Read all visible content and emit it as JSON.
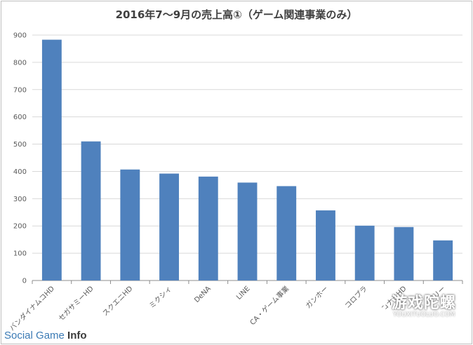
{
  "chart_data": {
    "type": "bar",
    "title": "2016年7〜9月の売上高①（ゲーム関連事業のみ）",
    "categories": [
      "バンダイナムコHD",
      "セガサミーHD",
      "スクエニHD",
      "ミクシィ",
      "DeNA",
      "LINE",
      "CA・ゲーム事業",
      "ガンホー",
      "コロプラ",
      "コナミHD",
      "グリー"
    ],
    "values": [
      883,
      510,
      407,
      392,
      381,
      359,
      346,
      257,
      201,
      196,
      147
    ],
    "yticks": [
      0,
      100,
      200,
      300,
      400,
      500,
      600,
      700,
      800,
      900
    ],
    "ylim": [
      0,
      900
    ],
    "grid": true,
    "bar_color": "#4f81bd"
  },
  "footer": {
    "logo_main": "Social Game",
    "logo_bold": "Info"
  },
  "watermark": {
    "cn": "游戏陀螺",
    "en": "YOUXITUOLUO.COM"
  }
}
